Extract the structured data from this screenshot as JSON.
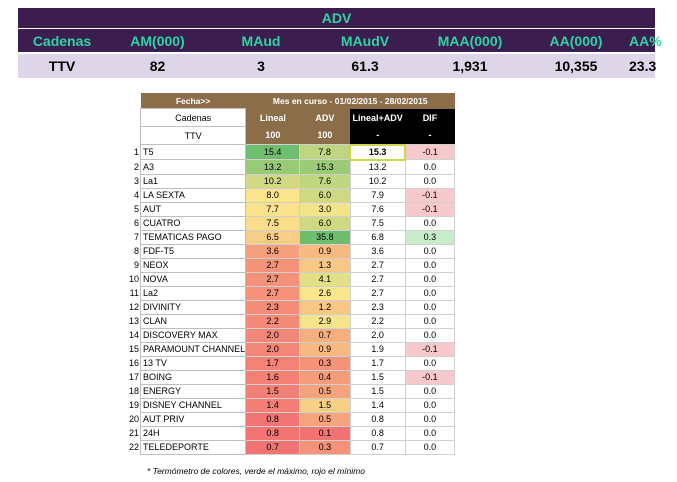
{
  "summary": {
    "title": "ADV",
    "headers": [
      "Cadenas",
      "AM(000)",
      "MAud",
      "MAudV",
      "MAA(000)",
      "AA(000)",
      "AA%"
    ],
    "row": [
      "TTV",
      "82",
      "3",
      "61.3",
      "1,931",
      "10,355",
      "23.3"
    ]
  },
  "detail": {
    "fecha_label": "Fecha>>",
    "period_label": "Mes en curso - 01/02/2015 - 28/02/2015",
    "cadenas_label": "Cadenas",
    "col_lineal": "Lineal",
    "col_adv": "ADV",
    "col_lineal_adv": "Lineal+ADV",
    "col_dif": "DIF",
    "ttv_label": "TTV",
    "ttv_lineal": "100",
    "ttv_adv": "100",
    "ttv_lineal_adv": "-",
    "ttv_dif": "-",
    "colors": {
      "header_brown": "#8b6d4a",
      "neg_dif": "#f7c9cc",
      "pos_dif": "#c8ecc8"
    },
    "rows": [
      {
        "n": "1",
        "name": "T5",
        "lineal": "15.4",
        "adv": "7.8",
        "la": "15.3",
        "dif": "-0.1"
      },
      {
        "n": "2",
        "name": "A3",
        "lineal": "13.2",
        "adv": "15.3",
        "la": "13.2",
        "dif": "0.0"
      },
      {
        "n": "3",
        "name": "La1",
        "lineal": "10.2",
        "adv": "7.6",
        "la": "10.2",
        "dif": "0.0"
      },
      {
        "n": "4",
        "name": "LA SEXTA",
        "lineal": "8.0",
        "adv": "6.0",
        "la": "7.9",
        "dif": "-0.1"
      },
      {
        "n": "5",
        "name": "AUT",
        "lineal": "7.7",
        "adv": "3.0",
        "la": "7.6",
        "dif": "-0.1"
      },
      {
        "n": "6",
        "name": "CUATRO",
        "lineal": "7.5",
        "adv": "6.0",
        "la": "7.5",
        "dif": "0.0"
      },
      {
        "n": "7",
        "name": "TEMATICAS PAGO",
        "lineal": "6.5",
        "adv": "35.8",
        "la": "6.8",
        "dif": "0.3"
      },
      {
        "n": "8",
        "name": "FDF-T5",
        "lineal": "3.6",
        "adv": "0.9",
        "la": "3.6",
        "dif": "0.0"
      },
      {
        "n": "9",
        "name": "NEOX",
        "lineal": "2.7",
        "adv": "1.3",
        "la": "2.7",
        "dif": "0.0"
      },
      {
        "n": "10",
        "name": "NOVA",
        "lineal": "2.7",
        "adv": "4.1",
        "la": "2.7",
        "dif": "0.0"
      },
      {
        "n": "11",
        "name": "La2",
        "lineal": "2.7",
        "adv": "2.6",
        "la": "2.7",
        "dif": "0.0"
      },
      {
        "n": "12",
        "name": "DIVINITY",
        "lineal": "2.3",
        "adv": "1.2",
        "la": "2.3",
        "dif": "0.0"
      },
      {
        "n": "13",
        "name": "CLAN",
        "lineal": "2.2",
        "adv": "2.9",
        "la": "2.2",
        "dif": "0.0"
      },
      {
        "n": "14",
        "name": "DISCOVERY MAX",
        "lineal": "2.0",
        "adv": "0.7",
        "la": "2.0",
        "dif": "0.0"
      },
      {
        "n": "15",
        "name": "PARAMOUNT CHANNEL",
        "lineal": "2.0",
        "adv": "0.9",
        "la": "1.9",
        "dif": "-0.1"
      },
      {
        "n": "16",
        "name": "13 TV",
        "lineal": "1.7",
        "adv": "0.3",
        "la": "1.7",
        "dif": "0.0"
      },
      {
        "n": "17",
        "name": "BOING",
        "lineal": "1.6",
        "adv": "0.4",
        "la": "1.5",
        "dif": "-0.1"
      },
      {
        "n": "18",
        "name": "ENERGY",
        "lineal": "1.5",
        "adv": "0.5",
        "la": "1.5",
        "dif": "0.0"
      },
      {
        "n": "19",
        "name": "DISNEY CHANNEL",
        "lineal": "1.4",
        "adv": "1.5",
        "la": "1.4",
        "dif": "0.0"
      },
      {
        "n": "20",
        "name": "AUT PRIV",
        "lineal": "0.8",
        "adv": "0.5",
        "la": "0.8",
        "dif": "0.0"
      },
      {
        "n": "21",
        "name": "24H",
        "lineal": "0.8",
        "adv": "0.1",
        "la": "0.8",
        "dif": "0.0"
      },
      {
        "n": "22",
        "name": "TELEDEPORTE",
        "lineal": "0.7",
        "adv": "0.3",
        "la": "0.7",
        "dif": "0.0"
      }
    ]
  },
  "footnote": "* Termómetro de colores, verde el máximo, rojo el mínimo"
}
